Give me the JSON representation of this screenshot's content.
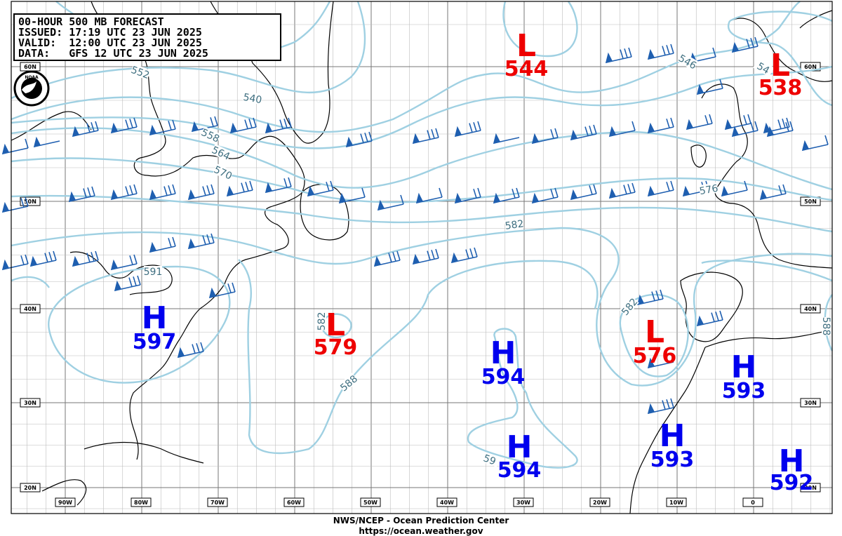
{
  "header": {
    "lines": [
      "00-HOUR 500 MB FORECAST",
      "ISSUED: 17:19 UTC 23 JUN 2025",
      "VALID:  12:00 UTC 23 JUN 2025",
      "DATA:   GFS 12 UTC 23 JUN 2025"
    ]
  },
  "logo": "NOAA",
  "pressure_centers": [
    {
      "type": "L",
      "value": 544
    },
    {
      "type": "L",
      "value": 538
    },
    {
      "type": "L",
      "value": 579
    },
    {
      "type": "L",
      "value": 576
    },
    {
      "type": "H",
      "value": 597
    },
    {
      "type": "H",
      "value": 594
    },
    {
      "type": "H",
      "value": 594
    },
    {
      "type": "H",
      "value": 593
    },
    {
      "type": "H",
      "value": 593
    },
    {
      "type": "H",
      "value": 592
    }
  ],
  "contour_labels": [
    "552",
    "540",
    "546",
    "54",
    "558",
    "564",
    "570",
    "576",
    "582",
    "582",
    "582",
    "588",
    "591",
    "59",
    "588"
  ],
  "latitude_labels": [
    "60N",
    "50N",
    "40N",
    "30N",
    "20N"
  ],
  "longitude_labels": [
    "90W",
    "80W",
    "70W",
    "60W",
    "50W",
    "40W",
    "30W",
    "20W",
    "10W",
    "0"
  ],
  "footer": {
    "agency": "NWS/NCEP - Ocean Prediction Center",
    "url": "https://ocean.weather.gov"
  }
}
